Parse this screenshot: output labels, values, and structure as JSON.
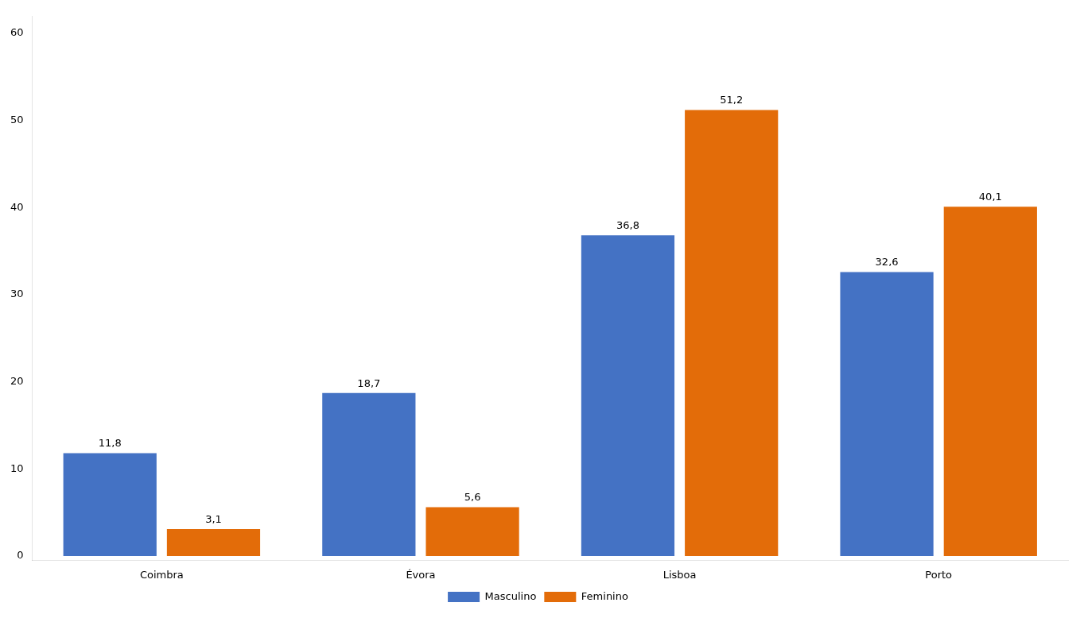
{
  "chart_data": {
    "type": "bar",
    "categories": [
      "Coimbra",
      "Évora",
      "Lisboa",
      "Porto"
    ],
    "series": [
      {
        "name": "Masculino",
        "color": "#4472C4",
        "values": [
          11.8,
          18.7,
          36.8,
          32.6
        ],
        "value_labels": [
          "11,8",
          "18,7",
          "36,8",
          "32,6"
        ]
      },
      {
        "name": "Feminino",
        "color": "#E36C09",
        "values": [
          3.1,
          5.6,
          51.2,
          40.1
        ],
        "value_labels": [
          "3,1",
          "5,6",
          "51,2",
          "40,1"
        ]
      }
    ],
    "ylim": [
      -0.5,
      62
    ],
    "yticks": [
      0,
      10,
      20,
      30,
      40,
      50,
      60
    ],
    "grid": false,
    "legend": "bottom",
    "data_labels": true
  }
}
